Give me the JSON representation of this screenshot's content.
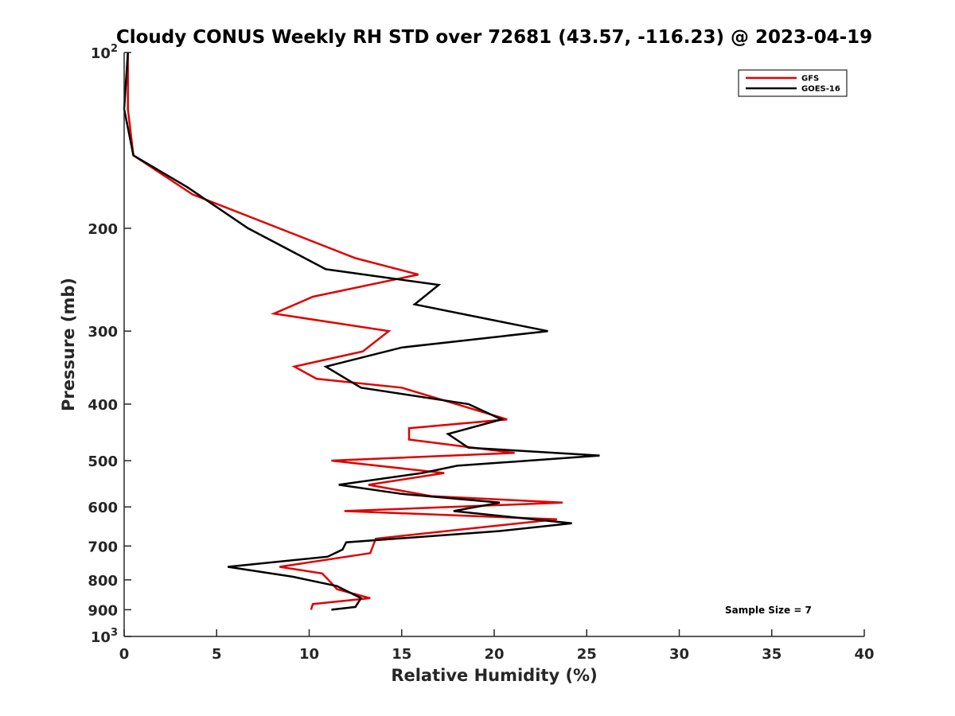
{
  "chart_data": {
    "type": "line",
    "title": "Cloudy CONUS Weekly RH STD over 72681 (43.57, -116.23) @ 2023-04-19",
    "xlabel": "Relative Humidity (%)",
    "ylabel": "Pressure (mb)",
    "xlim": [
      0,
      40
    ],
    "ylim": [
      100,
      1000
    ],
    "y_scale": "log",
    "y_reversed": true,
    "x_ticks": [
      "0",
      "5",
      "10",
      "15",
      "20",
      "25",
      "30",
      "35",
      "40"
    ],
    "y_ticks": [
      {
        "value": 100,
        "base": "10",
        "exp": "2"
      },
      {
        "value": 200,
        "label": "200"
      },
      {
        "value": 300,
        "label": "300"
      },
      {
        "value": 400,
        "label": "400"
      },
      {
        "value": 500,
        "label": "500"
      },
      {
        "value": 600,
        "label": "600"
      },
      {
        "value": 700,
        "label": "700"
      },
      {
        "value": 800,
        "label": "800"
      },
      {
        "value": 900,
        "label": "900"
      },
      {
        "value": 1000,
        "base": "10",
        "exp": "3"
      }
    ],
    "grid": false,
    "legend_position": "top-right",
    "annotation": "Sample Size = 7",
    "series": [
      {
        "name": "GFS",
        "color": "#e00000",
        "points": [
          [
            0.2,
            100
          ],
          [
            0.2,
            125
          ],
          [
            0.5,
            150
          ],
          [
            3.7,
            175
          ],
          [
            12.5,
            225
          ],
          [
            15.9,
            240
          ],
          [
            10.2,
            262
          ],
          [
            8.1,
            280
          ],
          [
            14.3,
            300
          ],
          [
            12.9,
            325
          ],
          [
            9.2,
            345
          ],
          [
            10.4,
            362
          ],
          [
            15.0,
            375
          ],
          [
            20.7,
            425
          ],
          [
            15.4,
            440
          ],
          [
            15.4,
            460
          ],
          [
            21.1,
            485
          ],
          [
            11.2,
            500
          ],
          [
            17.3,
            525
          ],
          [
            13.2,
            550
          ],
          [
            16.6,
            575
          ],
          [
            23.7,
            590
          ],
          [
            11.9,
            610
          ],
          [
            23.4,
            630
          ],
          [
            13.6,
            680
          ],
          [
            13.3,
            720
          ],
          [
            8.4,
            760
          ],
          [
            10.7,
            780
          ],
          [
            11.2,
            810
          ],
          [
            11.5,
            830
          ],
          [
            13.3,
            860
          ],
          [
            10.2,
            880
          ],
          [
            10.1,
            900
          ]
        ]
      },
      {
        "name": "GOES-16",
        "color": "#000000",
        "points": [
          [
            0.2,
            100
          ],
          [
            0.0,
            125
          ],
          [
            0.5,
            150
          ],
          [
            3.4,
            170
          ],
          [
            6.7,
            200
          ],
          [
            10.9,
            235
          ],
          [
            17.0,
            250
          ],
          [
            15.7,
            270
          ],
          [
            22.9,
            300
          ],
          [
            15.0,
            320
          ],
          [
            10.9,
            345
          ],
          [
            12.8,
            375
          ],
          [
            18.6,
            400
          ],
          [
            20.4,
            425
          ],
          [
            17.5,
            450
          ],
          [
            18.6,
            475
          ],
          [
            25.7,
            490
          ],
          [
            18.0,
            510
          ],
          [
            16.1,
            525
          ],
          [
            11.6,
            550
          ],
          [
            15.0,
            570
          ],
          [
            20.3,
            590
          ],
          [
            17.8,
            610
          ],
          [
            24.2,
            640
          ],
          [
            20.3,
            660
          ],
          [
            12.0,
            690
          ],
          [
            11.8,
            710
          ],
          [
            11.0,
            730
          ],
          [
            5.6,
            760
          ],
          [
            9.1,
            790
          ],
          [
            11.5,
            820
          ],
          [
            12.8,
            860
          ],
          [
            12.5,
            890
          ],
          [
            11.2,
            900
          ]
        ]
      }
    ]
  }
}
